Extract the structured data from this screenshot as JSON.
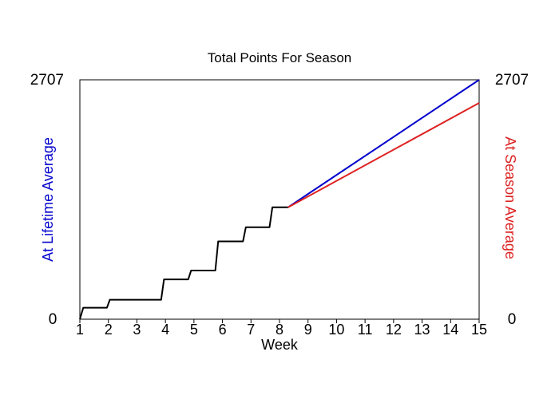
{
  "chart_data": {
    "type": "line",
    "title": "Total Points For Season",
    "xlabel": "Week",
    "ylabel_left": "At Lifetime Average",
    "ylabel_right": "At Season Average",
    "xlim": [
      1,
      15
    ],
    "ylim": [
      0,
      2707
    ],
    "y_tick_labels": {
      "left_min": "0",
      "left_max": "2707",
      "right_min": "0",
      "right_max": "2707"
    },
    "x_ticks": [
      1,
      2,
      3,
      4,
      5,
      6,
      7,
      8,
      9,
      10,
      11,
      12,
      13,
      14,
      15
    ],
    "x_tick_labels": [
      "1",
      "2",
      "3",
      "4",
      "5",
      "6",
      "7",
      "8",
      "9",
      "10",
      "11",
      "12",
      "13",
      "14",
      "15"
    ],
    "grid": false,
    "colors": {
      "actual": "#000000",
      "lifetime": "#0000cc",
      "season": "#dd2222",
      "frame": "#000000"
    },
    "series": [
      {
        "role": "actual",
        "x": [
          1.0,
          1.12,
          1.12,
          1.95,
          2.05,
          2.05,
          3.85,
          3.95,
          3.95,
          4.8,
          4.9,
          4.9,
          5.75,
          5.85,
          5.85,
          6.72,
          6.82,
          6.82,
          7.65,
          7.75,
          7.75,
          8.3
        ],
        "y": [
          0,
          130,
          130,
          130,
          220,
          220,
          220,
          450,
          450,
          450,
          550,
          550,
          550,
          880,
          880,
          880,
          1040,
          1040,
          1040,
          1265,
          1265,
          1265
        ]
      },
      {
        "role": "lifetime",
        "x": [
          8.3,
          15
        ],
        "y": [
          1265,
          2707
        ]
      },
      {
        "role": "season",
        "x": [
          8.3,
          15
        ],
        "y": [
          1265,
          2445
        ]
      }
    ]
  }
}
